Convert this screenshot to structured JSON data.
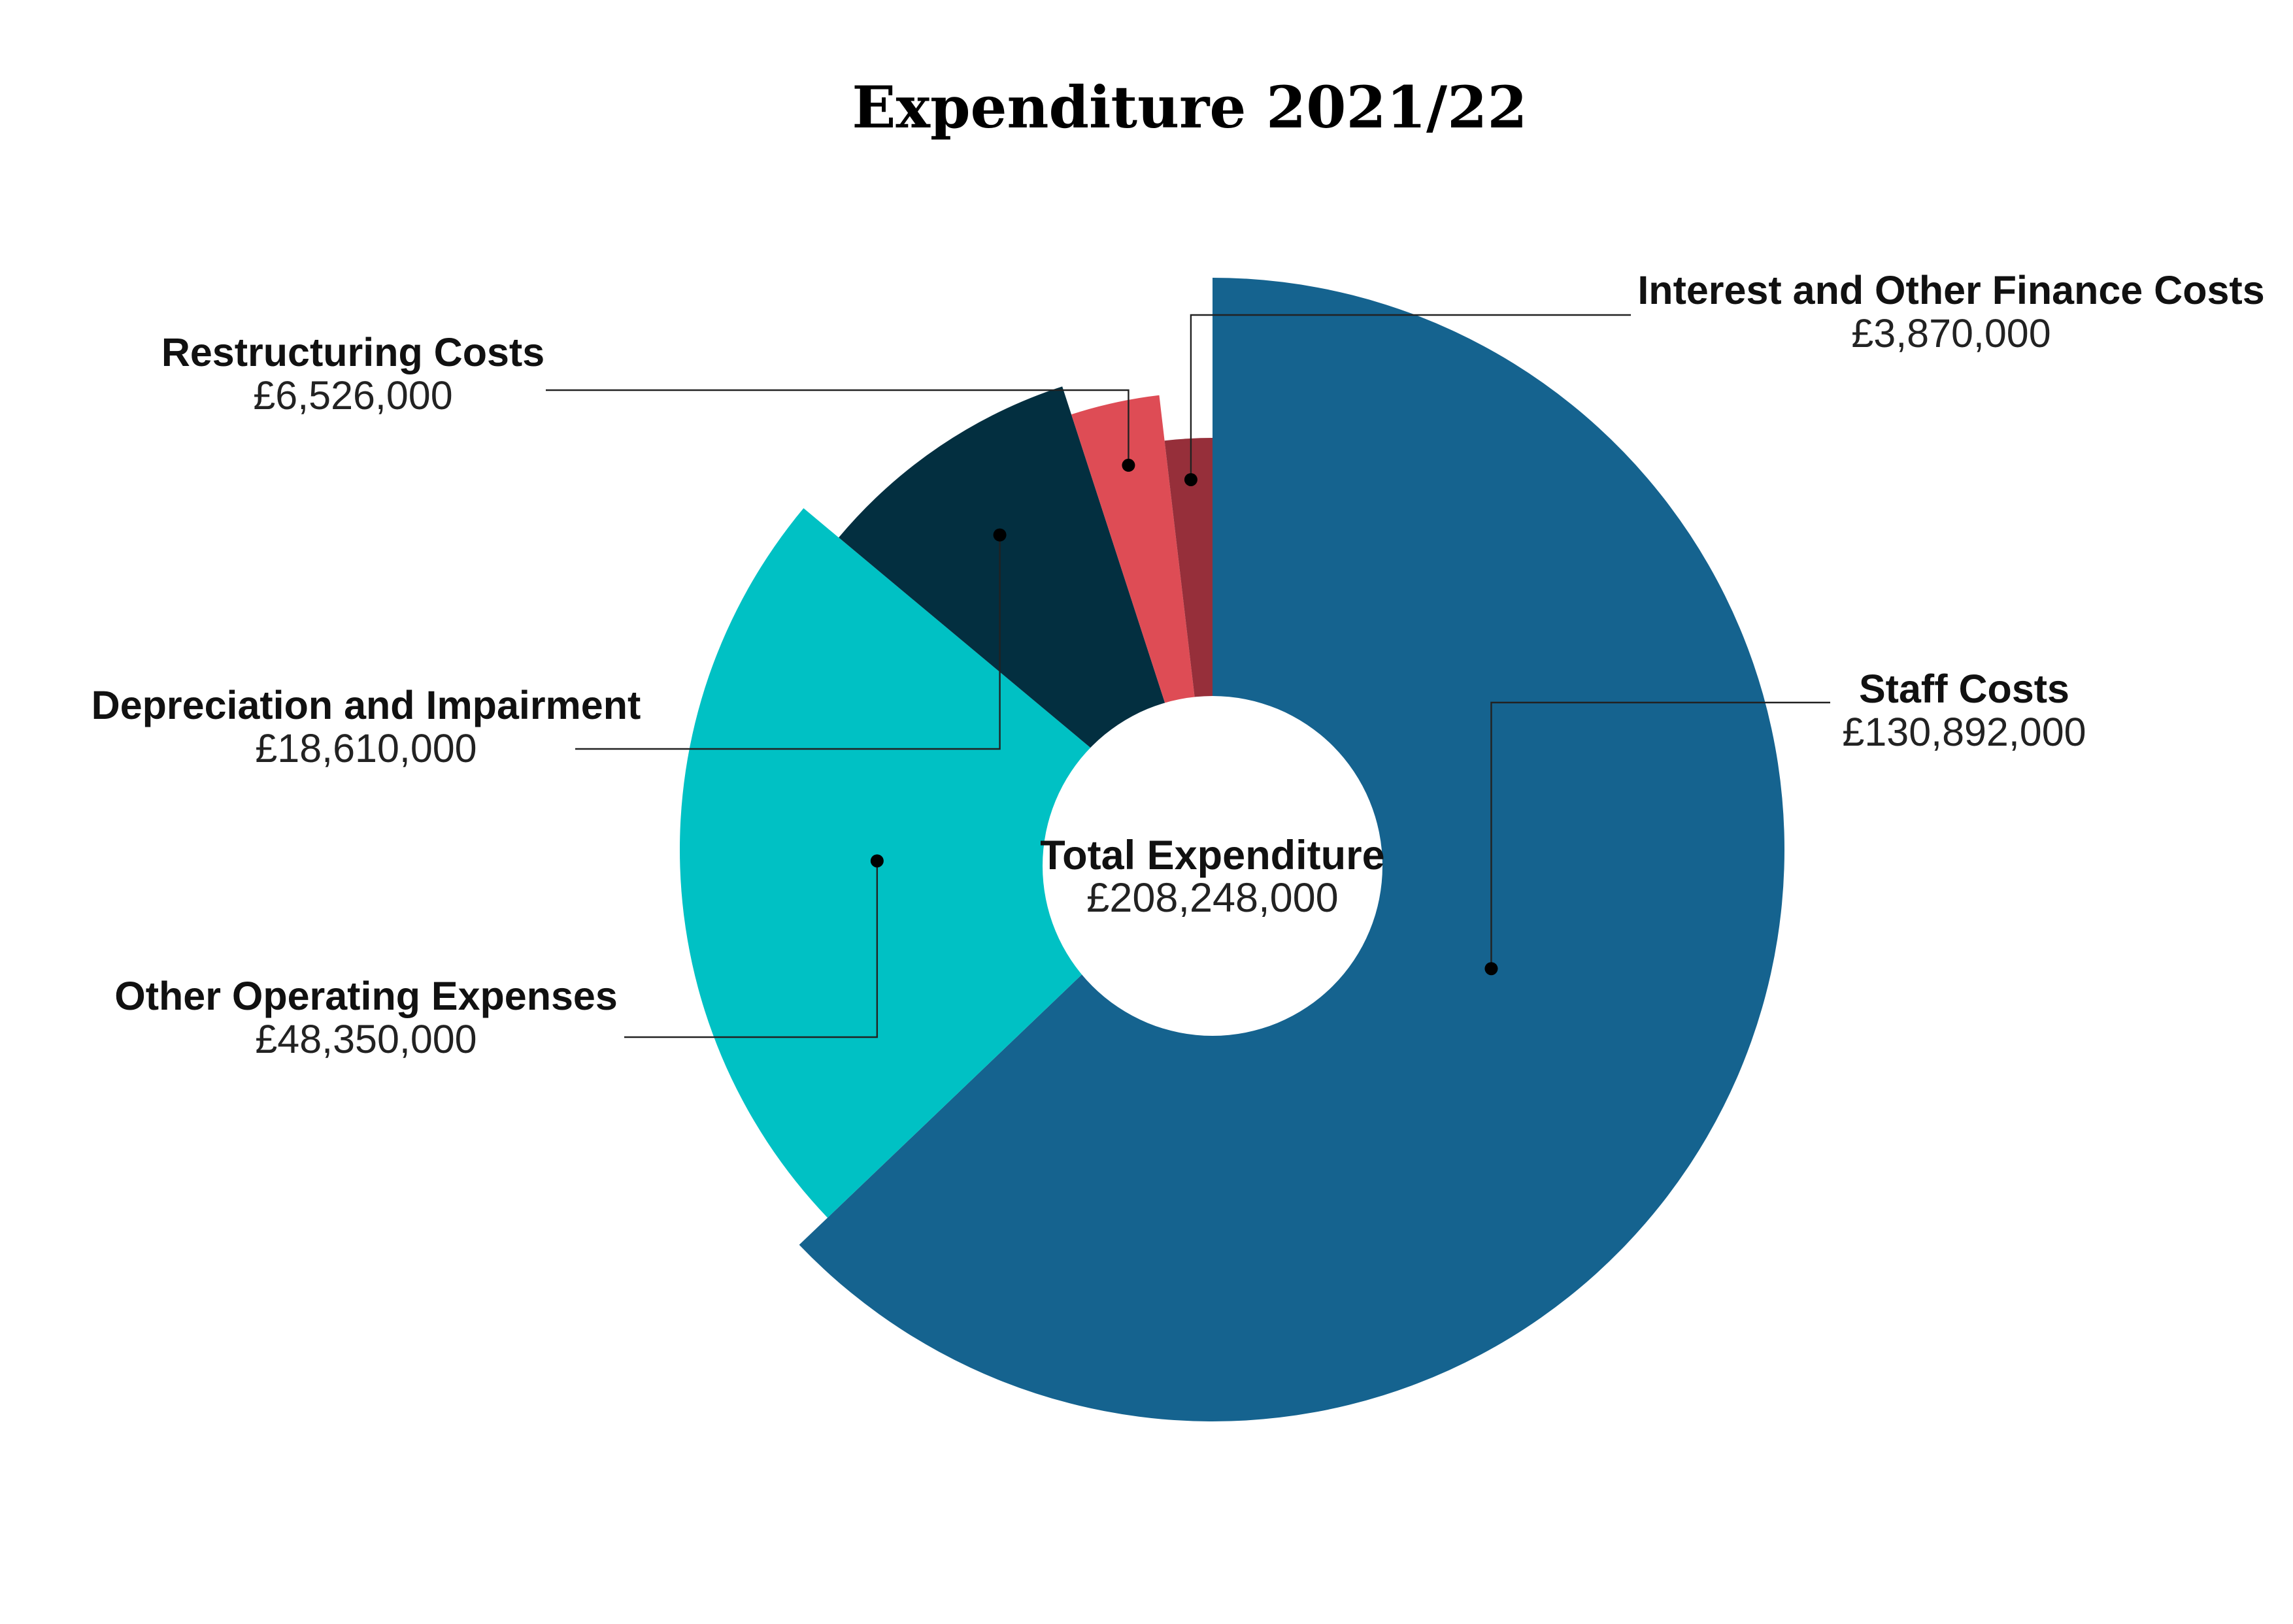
{
  "chart_data": {
    "type": "pie",
    "title": "Expenditure 2021/22",
    "center": {
      "label": "Total Expenditure",
      "value_text": "£208,248,000",
      "value": 208248000
    },
    "slices": [
      {
        "name": "Staff Costs",
        "value": 130892000,
        "value_text": "£130,892,000",
        "color": "#15638F"
      },
      {
        "name": "Other Operating Expenses",
        "value": 48350000,
        "value_text": "£48,350,000",
        "color": "#00C1C4"
      },
      {
        "name": "Depreciation and Impairment",
        "value": 18610000,
        "value_text": "£18,610,000",
        "color": "#032F40"
      },
      {
        "name": "Restructuring Costs",
        "value": 6526000,
        "value_text": "£6,526,000",
        "color": "#DE4C55"
      },
      {
        "name": "Interest and Other Finance Costs",
        "value": 3870000,
        "value_text": "£3,870,000",
        "color": "#962F3A"
      }
    ]
  }
}
